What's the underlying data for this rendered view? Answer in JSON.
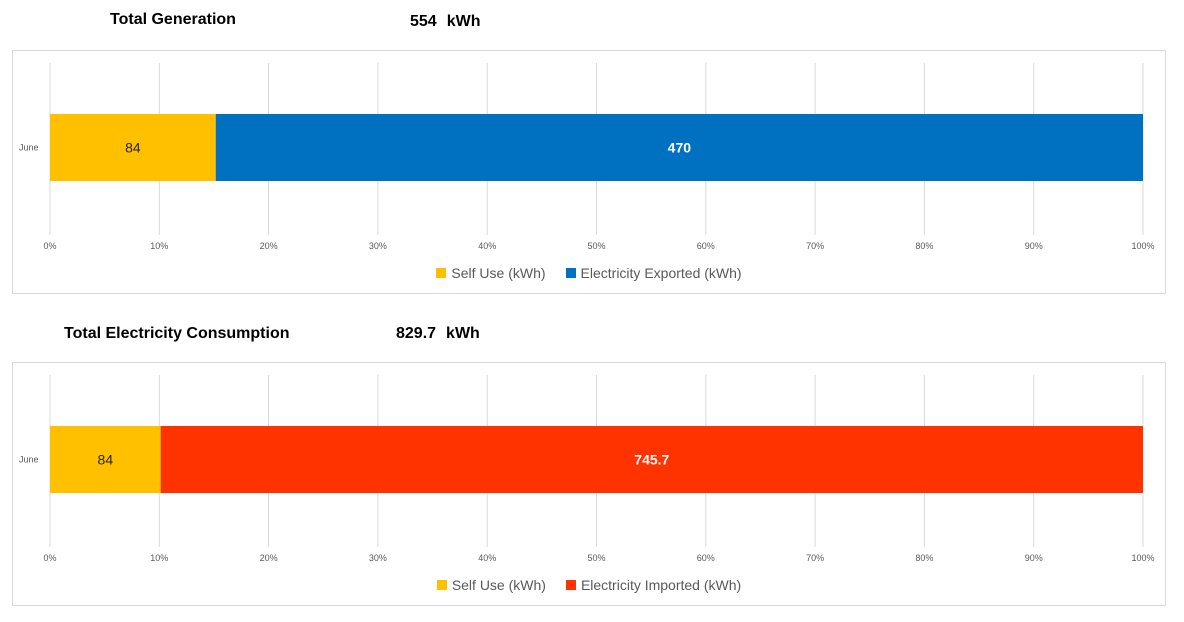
{
  "generation": {
    "title": "Total Generation",
    "total": "554",
    "unit": "kWh"
  },
  "consumption": {
    "title": "Total Electricity Consumption",
    "total": "829.7",
    "unit": "kWh"
  },
  "chart_data": [
    {
      "type": "bar",
      "orientation": "horizontal",
      "stacked": "percent",
      "categories": [
        "June"
      ],
      "series": [
        {
          "name": "Self Use (kWh)",
          "values": [
            84
          ],
          "color": "#FFC000"
        },
        {
          "name": "Electricity Exported (kWh)",
          "values": [
            470
          ],
          "color": "#0070C0"
        }
      ],
      "xlim": [
        0,
        100
      ],
      "x_ticks": [
        "0%",
        "10%",
        "20%",
        "30%",
        "40%",
        "50%",
        "60%",
        "70%",
        "80%",
        "90%",
        "100%"
      ],
      "grid": true,
      "legend": "bottom"
    },
    {
      "type": "bar",
      "orientation": "horizontal",
      "stacked": "percent",
      "categories": [
        "June"
      ],
      "series": [
        {
          "name": "Self Use (kWh)",
          "values": [
            84
          ],
          "color": "#FFC000"
        },
        {
          "name": "Electricity Imported (kWh)",
          "values": [
            745.7
          ],
          "color": "#FF3300"
        }
      ],
      "xlim": [
        0,
        100
      ],
      "x_ticks": [
        "0%",
        "10%",
        "20%",
        "30%",
        "40%",
        "50%",
        "60%",
        "70%",
        "80%",
        "90%",
        "100%"
      ],
      "grid": true,
      "legend": "bottom"
    }
  ]
}
